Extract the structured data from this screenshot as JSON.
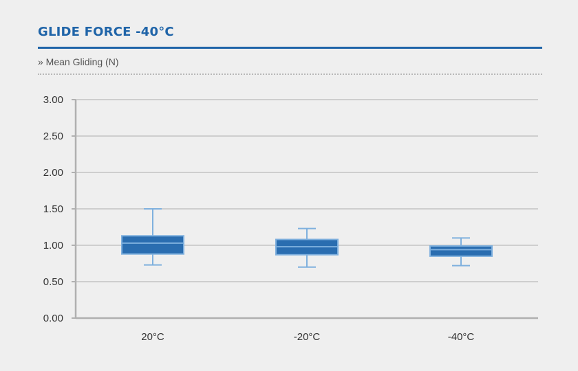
{
  "header": {
    "title": "GLIDE FORCE -40°C",
    "subtitle": "» Mean Gliding (N)"
  },
  "colors": {
    "title": "#1f64a8",
    "box_fill": "#2a6db0",
    "box_edge": "#7fb0de",
    "grid": "#c4c4c4",
    "axis": "#b0b0b0"
  },
  "chart_data": {
    "type": "box",
    "title": "",
    "xlabel": "",
    "ylabel": "",
    "ylim": [
      0,
      3
    ],
    "y_ticks": [
      "0.00",
      "0.50",
      "1.00",
      "1.50",
      "2.00",
      "2.50",
      "3.00"
    ],
    "y_tick_values": [
      0,
      0.5,
      1,
      1.5,
      2,
      2.5,
      3
    ],
    "grid": true,
    "categories": [
      "20°C",
      "-20°C",
      "-40°C"
    ],
    "boxes": [
      {
        "category": "20°C",
        "min": 0.73,
        "q1": 0.88,
        "median": 1.03,
        "q3": 1.13,
        "max": 1.5
      },
      {
        "category": "-20°C",
        "min": 0.7,
        "q1": 0.87,
        "median": 0.98,
        "q3": 1.08,
        "max": 1.23
      },
      {
        "category": "-40°C",
        "min": 0.72,
        "q1": 0.85,
        "median": 0.94,
        "q3": 0.99,
        "max": 1.1
      }
    ]
  }
}
